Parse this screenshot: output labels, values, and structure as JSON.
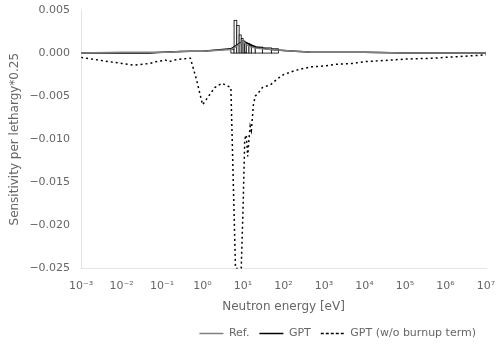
{
  "chart_data": {
    "type": "line",
    "title": "",
    "xlabel": "Neutron energy [eV]",
    "ylabel": "Sensitivity per lethargy*0.25",
    "log": "x",
    "xlim": [
      0.001,
      10000000.0
    ],
    "xticks": [
      {
        "value": 0.001,
        "label": "10⁻³"
      },
      {
        "value": 0.01,
        "label": "10⁻²"
      },
      {
        "value": 0.1,
        "label": "10⁻¹"
      },
      {
        "value": 1,
        "label": "10⁰"
      },
      {
        "value": 10,
        "label": "10¹"
      },
      {
        "value": 100,
        "label": "10²"
      },
      {
        "value": 1000,
        "label": "10³"
      },
      {
        "value": 10000,
        "label": "10⁴"
      },
      {
        "value": 100000,
        "label": "10⁵"
      },
      {
        "value": 1000000,
        "label": "10⁶"
      },
      {
        "value": 10000000,
        "label": "10⁷"
      }
    ],
    "ylim": [
      -0.025,
      0.005
    ],
    "yticks": [
      {
        "value": -0.025,
        "label": "−0.025"
      },
      {
        "value": -0.02,
        "label": "−0.020"
      },
      {
        "value": -0.015,
        "label": "−0.015"
      },
      {
        "value": -0.01,
        "label": "−0.010"
      },
      {
        "value": -0.005,
        "label": "−0.005"
      },
      {
        "value": 0.0,
        "label": "0.000"
      },
      0.005
    ],
    "grid": false,
    "legend": "lower right",
    "series": [
      {
        "name": "Ref.",
        "type": "line",
        "color": "#808080",
        "line_style": "solid",
        "x": [
          0.001,
          0.01,
          0.05,
          0.1,
          0.15,
          0.3,
          0.5,
          1.0,
          2.0,
          5.0,
          6.0,
          7.0,
          8.0,
          9.0,
          10.0,
          11.0,
          12.0,
          14.0,
          16.0,
          20.0,
          30.0,
          50.0,
          100.0,
          200.0,
          500.0,
          1000.0,
          5000.0,
          10000.0,
          100000.0,
          1000000.0,
          10000000.0
        ],
        "values": [
          0.0,
          0.0001,
          0.0001,
          0.0001,
          0.0001,
          0.0002,
          0.0002,
          0.0002,
          0.0003,
          0.0004,
          0.0006,
          0.0008,
          0.001,
          0.0012,
          0.0014,
          0.0012,
          0.001,
          0.0008,
          0.0007,
          0.0006,
          0.0005,
          0.0004,
          0.0003,
          0.0002,
          0.0001,
          0.0001,
          0.0001,
          0.0001,
          0.0,
          0.0,
          0.0
        ]
      },
      {
        "type": "histogram",
        "color": "#ffffff",
        "bins": [
          5.0,
          6.0,
          7.0,
          8.0,
          9.0,
          10.0,
          11.0,
          12.0,
          14.0,
          16.0,
          20.0,
          30.0,
          50.0,
          75.0
        ],
        "values": [
          0.0004,
          0.0038,
          0.0032,
          0.0021,
          0.0017,
          0.0014,
          0.0012,
          0.0011,
          0.0009,
          0.0008,
          0.0007,
          0.0006,
          0.0005
        ]
      },
      {
        "name": "GPT",
        "type": "line",
        "color": "#000000",
        "line_style": "solid",
        "x": [
          0.001,
          0.005,
          0.01,
          0.05,
          0.1,
          0.5,
          1.0,
          5.0,
          10.0,
          15.0,
          20.0,
          50.0,
          100.0,
          500.0,
          1000.0,
          5000.0,
          10000.0,
          100000.0,
          1000000.0,
          10000000.0
        ],
        "values": [
          0.0,
          0.0,
          0.0,
          0.0,
          0.0001,
          0.0002,
          0.0002,
          0.0005,
          0.0014,
          0.001,
          0.0007,
          0.0004,
          0.0003,
          0.0001,
          0.0001,
          0.0001,
          0.0001,
          0.0,
          0.0,
          0.0
        ]
      },
      {
        "name": "GPT (w/o burnup term)",
        "type": "line",
        "color": "#000000",
        "line_style": "dotted",
        "x": [
          0.001,
          0.005,
          0.01,
          0.02,
          0.05,
          0.07,
          0.1,
          0.12,
          0.15,
          0.2,
          0.3,
          0.5,
          0.7,
          1.0,
          2.0,
          3.0,
          5.0,
          6.5,
          7.0,
          7.5,
          8.0,
          9.0,
          10.0,
          11.0,
          12.0,
          13.0,
          14.0,
          15.0,
          16.0,
          18.0,
          20.0,
          25.0,
          30.0,
          40.0,
          50.0,
          70.0,
          100.0,
          150.0,
          200.0,
          300.0,
          500.0,
          1000.0,
          2000.0,
          5000.0,
          10000.0,
          50000.0,
          100000.0,
          500000.0,
          1000000.0,
          5000000.0,
          10000000.0
        ],
        "values": [
          -0.0005,
          -0.001,
          -0.0012,
          -0.0014,
          -0.0012,
          -0.001,
          -0.0009,
          -0.0008,
          -0.001,
          -0.0008,
          -0.0007,
          -0.0006,
          -0.003,
          -0.006,
          -0.004,
          -0.0035,
          -0.004,
          -0.025,
          -0.025,
          -0.025,
          -0.025,
          -0.025,
          -0.018,
          -0.01,
          -0.0095,
          -0.012,
          -0.01,
          -0.0085,
          -0.009,
          -0.006,
          -0.005,
          -0.0045,
          -0.004,
          -0.0038,
          -0.0036,
          -0.003,
          -0.0025,
          -0.0022,
          -0.002,
          -0.0018,
          -0.0016,
          -0.0015,
          -0.0013,
          -0.0012,
          -0.001,
          -0.0008,
          -0.0007,
          -0.0006,
          -0.0005,
          -0.0003,
          -0.0002
        ]
      }
    ]
  }
}
